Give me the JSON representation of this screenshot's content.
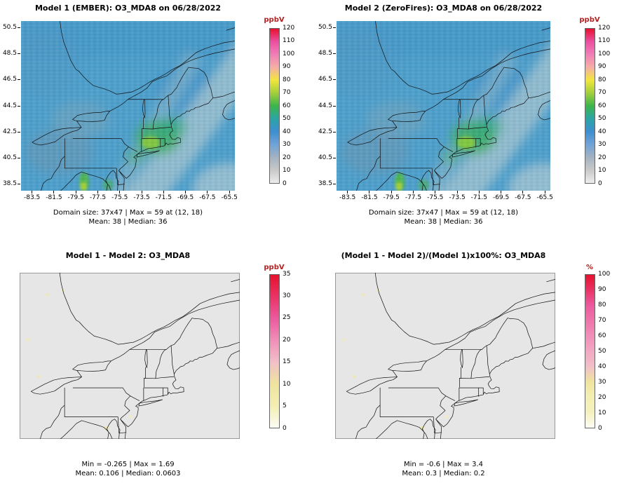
{
  "figure": {
    "background": "#ffffff",
    "units_label_color": "#b22222"
  },
  "chart_data": [
    {
      "type": "heatmap",
      "panel": "top-left",
      "title": "Model 1 (EMBER): O3_MDA8 on 06/28/2022",
      "x_tick_labels": [
        -83.5,
        -81.5,
        -79.5,
        -77.5,
        -75.5,
        -73.5,
        -71.5,
        -69.5,
        -67.5,
        -65.5
      ],
      "y_tick_labels": [
        50.5,
        48.5,
        46.5,
        44.5,
        42.5,
        40.5,
        38.5
      ],
      "xlim": [
        -84.5,
        -65.0
      ],
      "ylim": [
        38.0,
        51.0
      ],
      "grid_size": "37x47",
      "colorbar": {
        "units": "ppbV",
        "range": [
          0,
          120
        ],
        "ticks": [
          0,
          10,
          20,
          30,
          40,
          50,
          60,
          70,
          80,
          90,
          100,
          110,
          120
        ],
        "colors_bottom_to_top": [
          "#EDEDED",
          "#C9C9C9",
          "#A3B2C2",
          "#6FA3D8",
          "#3E8ED0",
          "#2AA5A5",
          "#3DB54A",
          "#A2CF3C",
          "#F2E63C",
          "#F5AFA6",
          "#F07FB8",
          "#EC4FA0",
          "#E8112D"
        ]
      },
      "stats_line1": "Domain size: 37x47 | Max = 59 at (12, 18)",
      "stats_line2": "Mean: 38 | Median: 36",
      "stats": {
        "max": 59,
        "max_cell": "(12, 18)",
        "mean": 38,
        "median": 36
      }
    },
    {
      "type": "heatmap",
      "panel": "top-right",
      "title": "Model 2 (ZeroFires): O3_MDA8 on 06/28/2022",
      "x_tick_labels": [
        -83.5,
        -81.5,
        -79.5,
        -77.5,
        -75.5,
        -73.5,
        -71.5,
        -69.5,
        -67.5,
        -65.5
      ],
      "y_tick_labels": [
        50.5,
        48.5,
        46.5,
        44.5,
        42.5,
        40.5,
        38.5
      ],
      "xlim": [
        -84.5,
        -65.0
      ],
      "ylim": [
        38.0,
        51.0
      ],
      "grid_size": "37x47",
      "colorbar": {
        "units": "ppbV",
        "range": [
          0,
          120
        ],
        "ticks": [
          0,
          10,
          20,
          30,
          40,
          50,
          60,
          70,
          80,
          90,
          100,
          110,
          120
        ],
        "colors_bottom_to_top": [
          "#EDEDED",
          "#C9C9C9",
          "#A3B2C2",
          "#6FA3D8",
          "#3E8ED0",
          "#2AA5A5",
          "#3DB54A",
          "#A2CF3C",
          "#F2E63C",
          "#F5AFA6",
          "#F07FB8",
          "#EC4FA0",
          "#E8112D"
        ]
      },
      "stats_line1": "Domain size: 37x47 | Max = 59 at (12, 18)",
      "stats_line2": "Mean: 38 | Median: 36",
      "stats": {
        "max": 59,
        "max_cell": "(12, 18)",
        "mean": 38,
        "median": 36
      }
    },
    {
      "type": "heatmap",
      "panel": "bottom-left",
      "title": "Model 1 - Model 2: O3_MDA8",
      "x_tick_labels": [],
      "y_tick_labels": [],
      "xlim": [
        -84.5,
        -65.0
      ],
      "ylim": [
        38.0,
        51.0
      ],
      "colorbar": {
        "units": "ppbV",
        "range": [
          0,
          35
        ],
        "ticks": [
          0,
          5,
          10,
          15,
          20,
          25,
          30,
          35
        ],
        "colors_bottom_to_top": [
          "#FCFCF4",
          "#F3EFB2",
          "#EFE49E",
          "#F2BFC8",
          "#F08FB8",
          "#EC5A9E",
          "#E93366",
          "#E8112D"
        ]
      },
      "stats_line1": "Min = -0.265 | Max = 1.69",
      "stats_line2": "Mean: 0.106 | Median: 0.0603",
      "stats": {
        "min": -0.265,
        "max": 1.69,
        "mean": 0.106,
        "median": 0.0603
      }
    },
    {
      "type": "heatmap",
      "panel": "bottom-right",
      "title": "(Model 1 - Model 2)/(Model 1)x100%: O3_MDA8",
      "x_tick_labels": [],
      "y_tick_labels": [],
      "xlim": [
        -84.5,
        -65.0
      ],
      "ylim": [
        38.0,
        51.0
      ],
      "colorbar": {
        "units": "%",
        "range": [
          0,
          100
        ],
        "ticks": [
          0,
          10,
          20,
          30,
          40,
          50,
          60,
          70,
          80,
          90,
          100
        ],
        "colors_bottom_to_top": [
          "#FCFCF4",
          "#F5F1BE",
          "#F3EFB2",
          "#EFE49E",
          "#F2BFC8",
          "#F2A8C2",
          "#F08FB8",
          "#EE74AA",
          "#EC5A9E",
          "#E93366",
          "#E8112D"
        ]
      },
      "stats_line1": "Min = -0.6 | Max = 3.4",
      "stats_line2": "Mean: 0.3 | Median: 0.2",
      "stats": {
        "min": -0.6,
        "max": 3.4,
        "mean": 0.3,
        "median": 0.2
      }
    }
  ]
}
